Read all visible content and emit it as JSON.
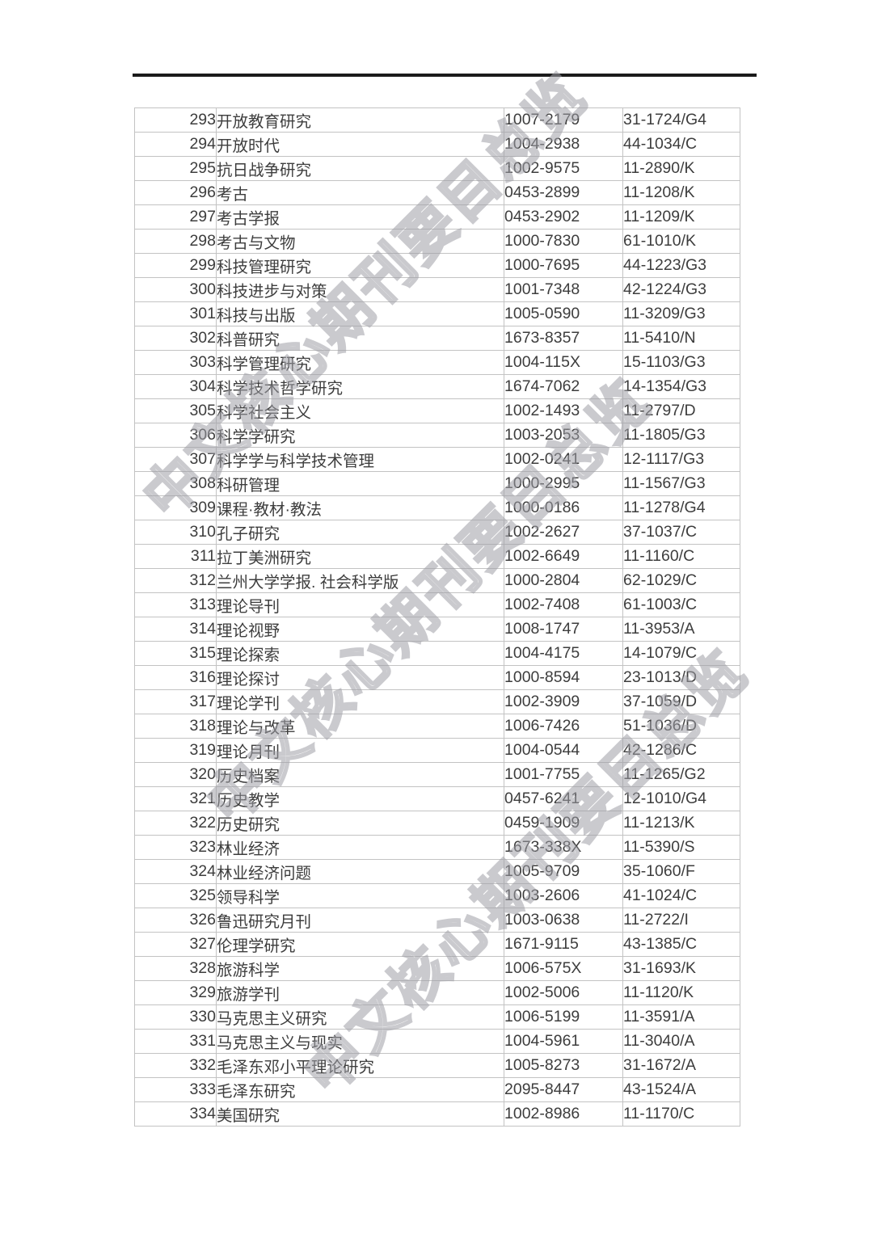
{
  "watermark": {
    "text": "中文核心期刊要目总览",
    "color": "rgba(158,158,165,0.55)"
  },
  "header": {
    "rule_color": "#1b1b1b"
  },
  "table": {
    "border_color": "#c3c3c3",
    "text_color": "#3d3d3d",
    "rows": [
      {
        "no": "293",
        "name": "开放教育研究",
        "issn": "1007-2179",
        "cn": "31-1724/G4"
      },
      {
        "no": "294",
        "name": "开放时代",
        "issn": "1004-2938",
        "cn": "44-1034/C"
      },
      {
        "no": "295",
        "name": "抗日战争研究",
        "issn": "1002-9575",
        "cn": "11-2890/K"
      },
      {
        "no": "296",
        "name": "考古",
        "issn": "0453-2899",
        "cn": "11-1208/K"
      },
      {
        "no": "297",
        "name": "考古学报",
        "issn": "0453-2902",
        "cn": "11-1209/K"
      },
      {
        "no": "298",
        "name": "考古与文物",
        "issn": "1000-7830",
        "cn": "61-1010/K"
      },
      {
        "no": "299",
        "name": "科技管理研究",
        "issn": "1000-7695",
        "cn": "44-1223/G3"
      },
      {
        "no": "300",
        "name": "科技进步与对策",
        "issn": "1001-7348",
        "cn": "42-1224/G3"
      },
      {
        "no": "301",
        "name": "科技与出版",
        "issn": "1005-0590",
        "cn": "11-3209/G3"
      },
      {
        "no": "302",
        "name": "科普研究",
        "issn": "1673-8357",
        "cn": "11-5410/N"
      },
      {
        "no": "303",
        "name": "科学管理研究",
        "issn": "1004-115X",
        "cn": "15-1103/G3"
      },
      {
        "no": "304",
        "name": "科学技术哲学研究",
        "issn": "1674-7062",
        "cn": "14-1354/G3"
      },
      {
        "no": "305",
        "name": "科学社会主义",
        "issn": "1002-1493",
        "cn": "11-2797/D"
      },
      {
        "no": "306",
        "name": "科学学研究",
        "issn": "1003-2053",
        "cn": "11-1805/G3"
      },
      {
        "no": "307",
        "name": "科学学与科学技术管理",
        "issn": "1002-0241",
        "cn": "12-1117/G3"
      },
      {
        "no": "308",
        "name": "科研管理",
        "issn": "1000-2995",
        "cn": "11-1567/G3"
      },
      {
        "no": "309",
        "name": "课程·教材·教法",
        "issn": "1000-0186",
        "cn": "11-1278/G4"
      },
      {
        "no": "310",
        "name": "孔子研究",
        "issn": "1002-2627",
        "cn": "37-1037/C"
      },
      {
        "no": "311",
        "name": "拉丁美洲研究",
        "issn": "1002-6649",
        "cn": "11-1160/C"
      },
      {
        "no": "312",
        "name": "兰州大学学报. 社会科学版",
        "issn": "1000-2804",
        "cn": "62-1029/C"
      },
      {
        "no": "313",
        "name": "理论导刊",
        "issn": "1002-7408",
        "cn": "61-1003/C"
      },
      {
        "no": "314",
        "name": "理论视野",
        "issn": "1008-1747",
        "cn": "11-3953/A"
      },
      {
        "no": "315",
        "name": "理论探索",
        "issn": "1004-4175",
        "cn": "14-1079/C"
      },
      {
        "no": "316",
        "name": "理论探讨",
        "issn": "1000-8594",
        "cn": "23-1013/D"
      },
      {
        "no": "317",
        "name": "理论学刊",
        "issn": "1002-3909",
        "cn": "37-1059/D"
      },
      {
        "no": "318",
        "name": "理论与改革",
        "issn": "1006-7426",
        "cn": "51-1036/D"
      },
      {
        "no": "319",
        "name": "理论月刊",
        "issn": "1004-0544",
        "cn": "42-1286/C"
      },
      {
        "no": "320",
        "name": "历史档案",
        "issn": "1001-7755",
        "cn": "11-1265/G2"
      },
      {
        "no": "321",
        "name": "历史教学",
        "issn": "0457-6241",
        "cn": "12-1010/G4"
      },
      {
        "no": "322",
        "name": "历史研究",
        "issn": "0459-1909",
        "cn": "11-1213/K"
      },
      {
        "no": "323",
        "name": "林业经济",
        "issn": "1673-338X",
        "cn": "11-5390/S"
      },
      {
        "no": "324",
        "name": "林业经济问题",
        "issn": "1005-9709",
        "cn": "35-1060/F"
      },
      {
        "no": "325",
        "name": "领导科学",
        "issn": "1003-2606",
        "cn": "41-1024/C"
      },
      {
        "no": "326",
        "name": "鲁迅研究月刊",
        "issn": "1003-0638",
        "cn": "11-2722/I"
      },
      {
        "no": "327",
        "name": "伦理学研究",
        "issn": "1671-9115",
        "cn": "43-1385/C"
      },
      {
        "no": "328",
        "name": "旅游科学",
        "issn": "1006-575X",
        "cn": "31-1693/K"
      },
      {
        "no": "329",
        "name": "旅游学刊",
        "issn": "1002-5006",
        "cn": "11-1120/K"
      },
      {
        "no": "330",
        "name": "马克思主义研究",
        "issn": "1006-5199",
        "cn": "11-3591/A"
      },
      {
        "no": "331",
        "name": "马克思主义与现实",
        "issn": "1004-5961",
        "cn": "11-3040/A"
      },
      {
        "no": "332",
        "name": "毛泽东邓小平理论研究",
        "issn": "1005-8273",
        "cn": "31-1672/A"
      },
      {
        "no": "333",
        "name": "毛泽东研究",
        "issn": "2095-8447",
        "cn": "43-1524/A"
      },
      {
        "no": "334",
        "name": "美国研究",
        "issn": "1002-8986",
        "cn": "11-1170/C"
      }
    ]
  }
}
